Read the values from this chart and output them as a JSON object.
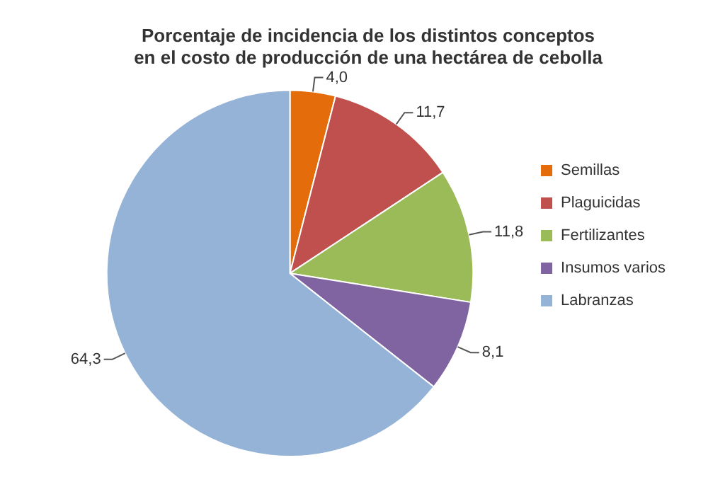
{
  "chart_data": {
    "type": "pie",
    "title": [
      "Porcentaje de incidencia de los distintos conceptos",
      "en el costo de producción de una hectárea de cebolla"
    ],
    "categories": [
      "Semillas",
      "Plaguicidas",
      "Fertilizantes",
      "Insumos varios",
      "Labranzas"
    ],
    "values": [
      4.0,
      11.7,
      11.8,
      8.1,
      64.3
    ],
    "value_labels": [
      "4,0",
      "11,7",
      "11,8",
      "8,1",
      "64,3"
    ],
    "colors": [
      "#e46c0a",
      "#c0504d",
      "#9bbb59",
      "#8064a2",
      "#95b3d7"
    ],
    "legend": "right"
  }
}
